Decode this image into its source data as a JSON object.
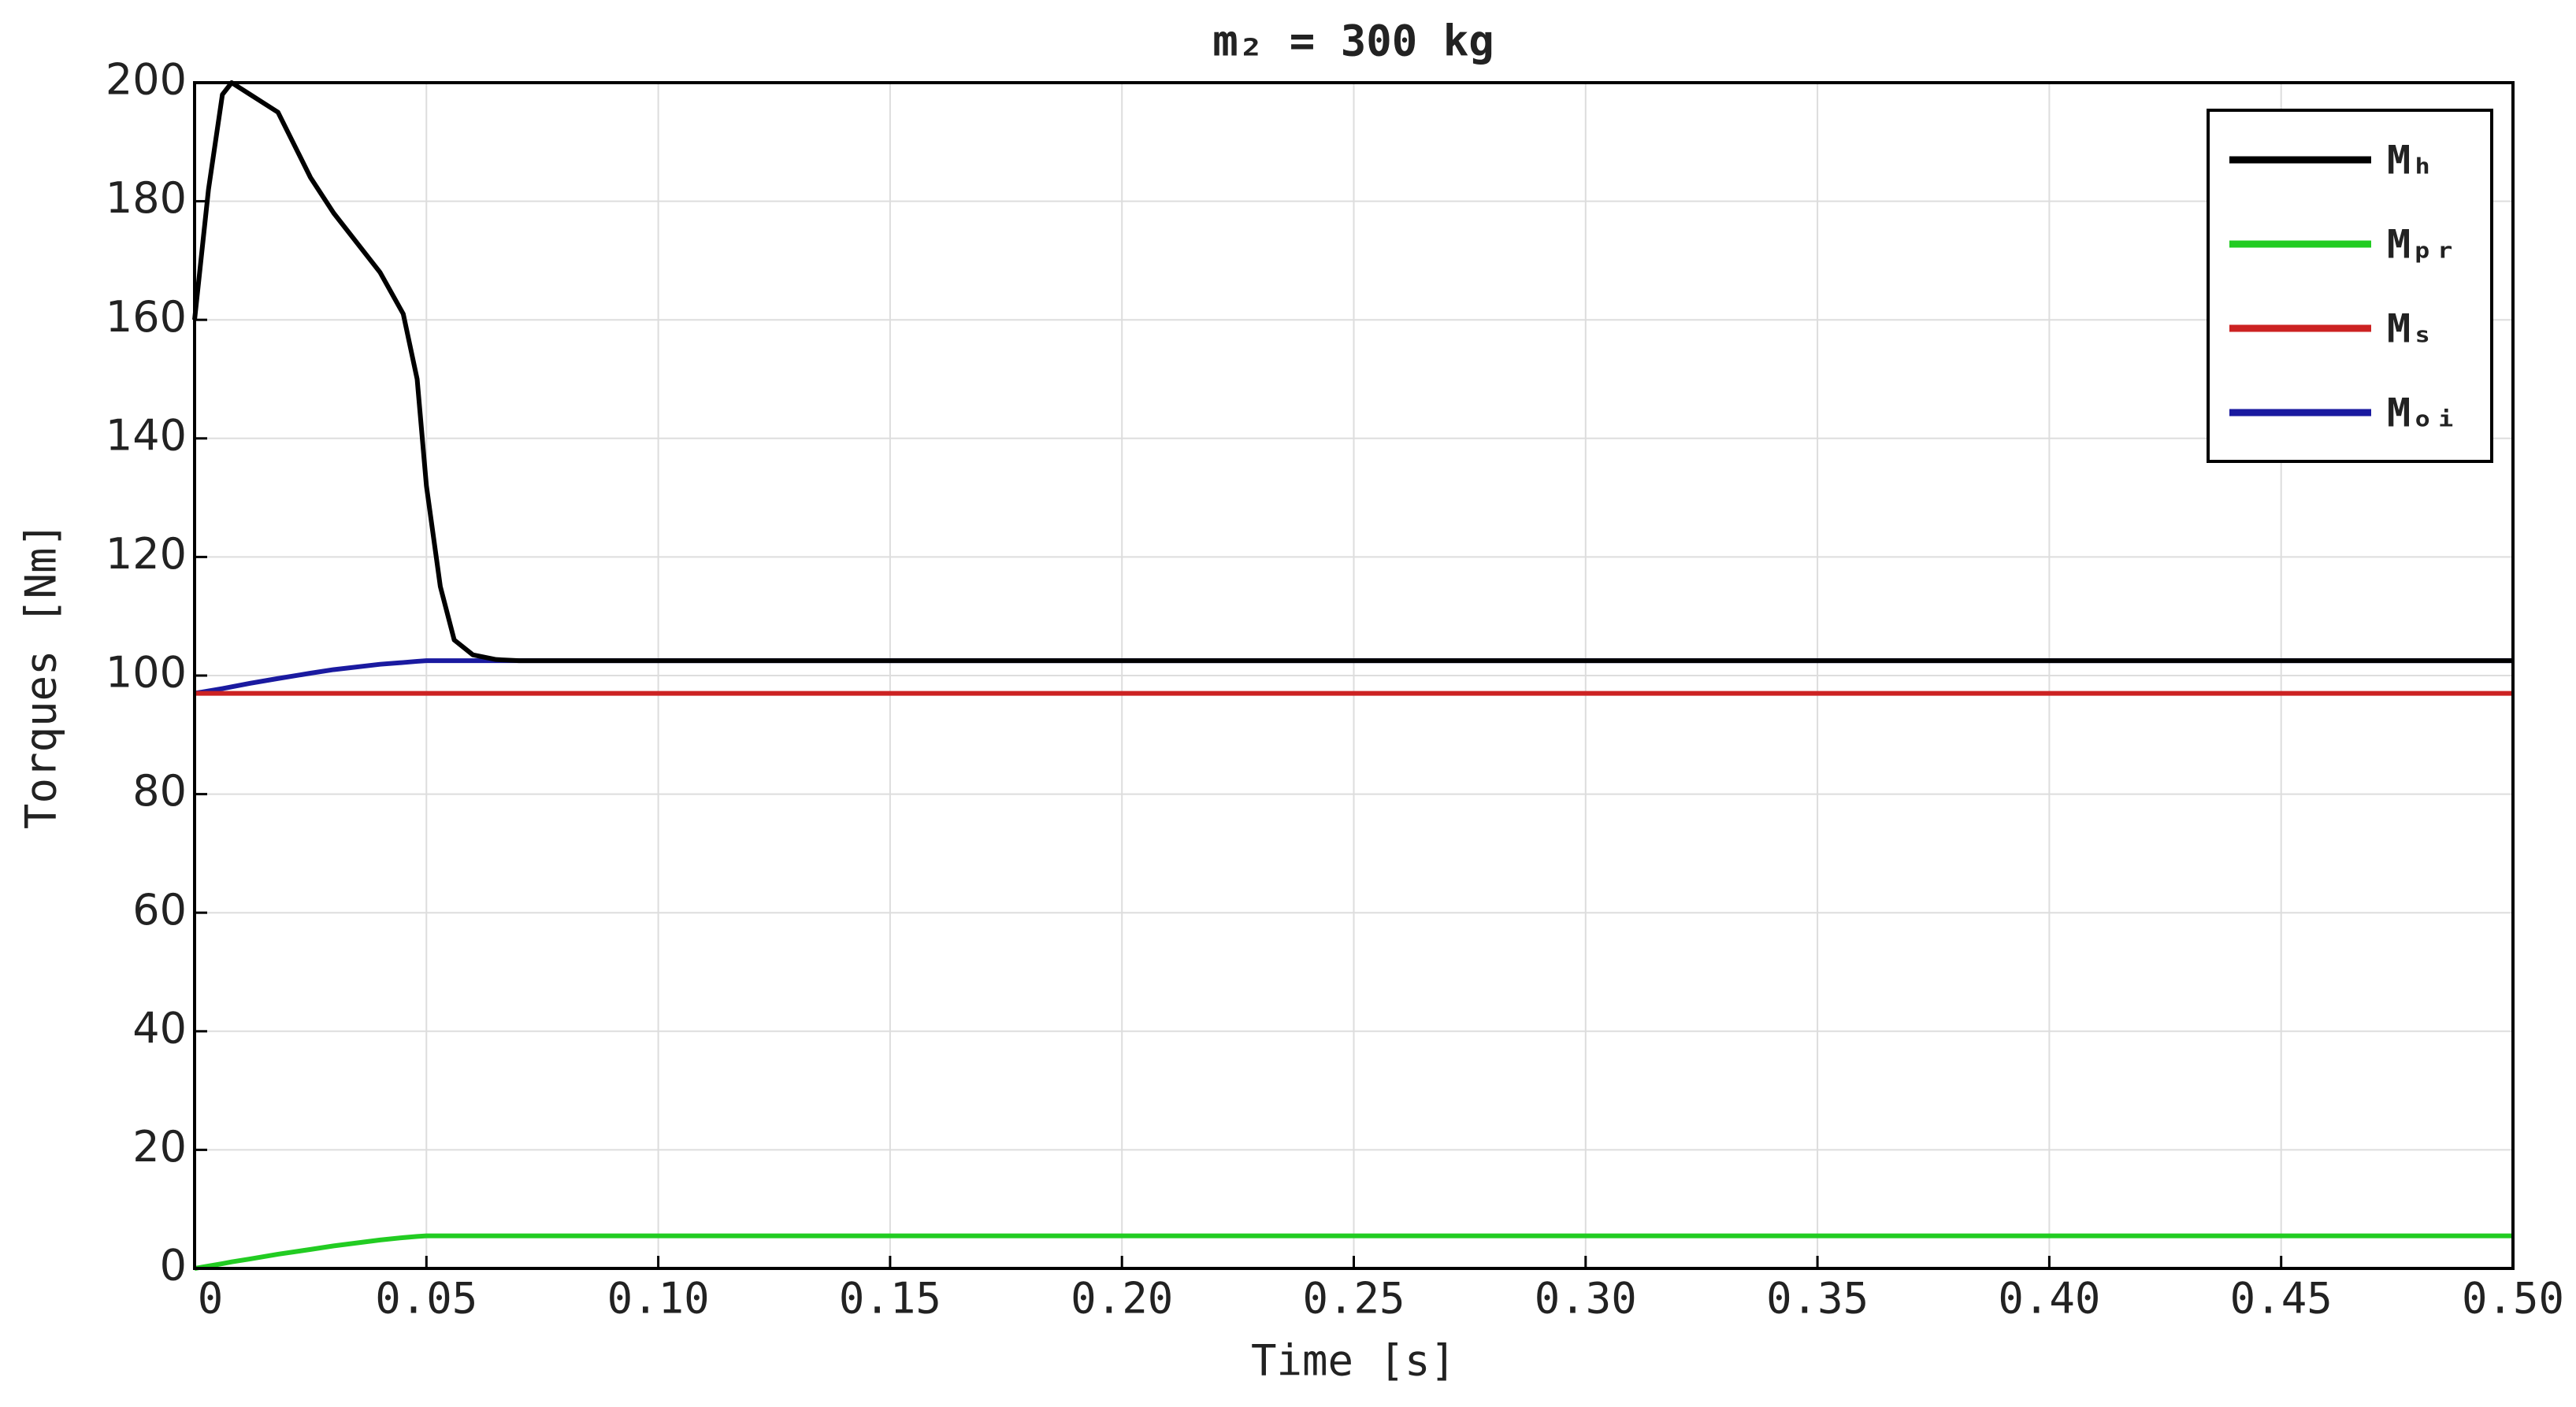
{
  "chart_data": {
    "type": "line",
    "title": "m₂ = 300 kg",
    "x_label": "Time [s]",
    "y_label": "Torques [Nm]",
    "x": [
      0,
      0.003,
      0.006,
      0.008,
      0.012,
      0.018,
      0.025,
      0.03,
      0.04,
      0.045,
      0.048,
      0.05,
      0.053,
      0.056,
      0.06,
      0.065,
      0.07,
      0.1,
      0.15,
      0.2,
      0.25,
      0.3,
      0.35,
      0.4,
      0.45,
      0.5
    ],
    "series": [
      {
        "name": "Mₕ",
        "color": "#000000",
        "values": [
          160,
          182,
          198,
          200,
          198,
          195,
          184,
          178,
          168,
          161,
          150,
          132,
          115,
          106,
          103.5,
          102.7,
          102.5,
          102.5,
          102.5,
          102.5,
          102.5,
          102.5,
          102.5,
          102.5,
          102.5,
          102.5
        ]
      },
      {
        "name": "Mₚᵣ",
        "color": "#22cc22",
        "values": [
          0,
          0.4,
          0.8,
          1.1,
          1.6,
          2.4,
          3.2,
          3.8,
          4.8,
          5.2,
          5.4,
          5.5,
          5.5,
          5.5,
          5.5,
          5.5,
          5.5,
          5.5,
          5.5,
          5.5,
          5.5,
          5.5,
          5.5,
          5.5,
          5.5,
          5.5
        ]
      },
      {
        "name": "Mₛ",
        "color": "#cc2222",
        "values": [
          97,
          97,
          97,
          97,
          97,
          97,
          97,
          97,
          97,
          97,
          97,
          97,
          97,
          97,
          97,
          97,
          97,
          97,
          97,
          97,
          97,
          97,
          97,
          97,
          97,
          97
        ]
      },
      {
        "name": "Mₒᵢ",
        "color": "#1a1aa0",
        "values": [
          97,
          97.4,
          97.8,
          98.1,
          98.7,
          99.5,
          100.4,
          101,
          101.9,
          102.2,
          102.4,
          102.5,
          102.5,
          102.5,
          102.5,
          102.5,
          102.5,
          102.5,
          102.5,
          102.5,
          102.5,
          102.5,
          102.5,
          102.5,
          102.5,
          102.5
        ]
      }
    ],
    "xlim": [
      0,
      0.5
    ],
    "ylim": [
      0,
      200
    ],
    "xticks": [
      0,
      0.05,
      {
        "value": 0.1,
        "label": "0.10"
      },
      0.15,
      {
        "value": 0.2,
        "label": "0.20"
      },
      0.25,
      {
        "value": 0.3,
        "label": "0.30"
      },
      0.35,
      {
        "value": 0.4,
        "label": "0.40"
      },
      0.45,
      {
        "value": 0.5,
        "label": "0.50"
      }
    ],
    "yticks": [
      0,
      20,
      40,
      60,
      80,
      100,
      120,
      140,
      160,
      180,
      200
    ],
    "grid": true,
    "legend": "upper right"
  }
}
